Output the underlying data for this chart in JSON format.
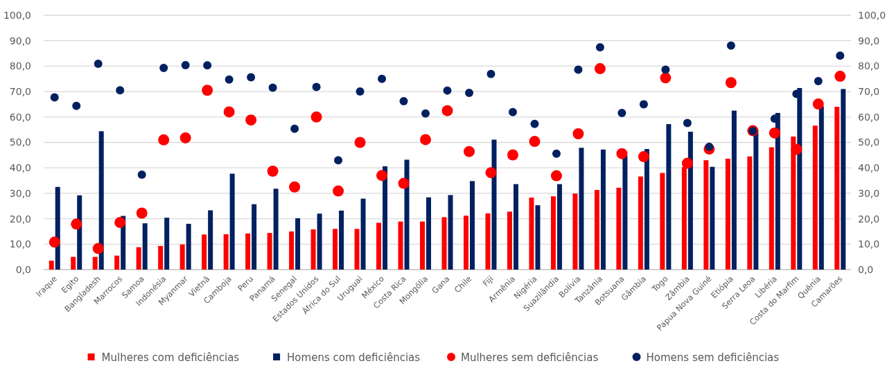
{
  "chart_data": {
    "type": "bar",
    "categories": [
      "Iraque",
      "Egito",
      "Bangladesh",
      "Marrocos",
      "Samoa",
      "Indonésia",
      "Myanmar",
      "Vietnã",
      "Camboja",
      "Peru",
      "Panamá",
      "Senegal",
      "Estados Unidos",
      "África do Sul",
      "Uruguai",
      "México",
      "Costa Rica",
      "Mongólia",
      "Gana",
      "Chile",
      "Fiji",
      "Armênia",
      "Nigéria",
      "Suazilândia",
      "Bolívia",
      "Tanzânia",
      "Botsuana",
      "Gâmbia",
      "Togo",
      "Zâmbia",
      "Papua Nova Guiné",
      "Etiópia",
      "Serra Leoa",
      "Libéria",
      "Costa do Marfim",
      "Quênia",
      "Camarões"
    ],
    "series": [
      {
        "name": "Mulheres com deficiências",
        "color": "#ff0000",
        "values": [
          3.5,
          5.0,
          5.0,
          5.5,
          8.8,
          9.3,
          9.9,
          13.8,
          13.9,
          14.2,
          14.4,
          15.0,
          15.8,
          16.0,
          16.0,
          18.4,
          18.9,
          18.9,
          20.6,
          21.2,
          22.1,
          22.8,
          28.3,
          28.8,
          29.9,
          31.3,
          32.2,
          36.6,
          38.0,
          40.3,
          43.0,
          43.6,
          44.5,
          48.1,
          52.3,
          56.6,
          64.0
        ]
      },
      {
        "name": "Homens com deficiências",
        "color": "#002060",
        "values": [
          32.5,
          29.2,
          54.4,
          21.1,
          18.2,
          20.4,
          18.0,
          23.3,
          37.7,
          25.7,
          31.8,
          20.2,
          22.0,
          23.2,
          27.9,
          40.6,
          43.2,
          28.4,
          29.3,
          34.8,
          51.1,
          33.6,
          25.3,
          33.6,
          47.9,
          47.2,
          44.9,
          47.4,
          57.2,
          54.2,
          40.4,
          62.5,
          54.8,
          61.6,
          71.4,
          64.2,
          71.0
        ]
      },
      {
        "name": "Mulheres sem deficiências",
        "type": "scatter",
        "color": "#ff0000",
        "values": [
          10.8,
          17.9,
          8.3,
          18.5,
          22.2,
          51.0,
          51.8,
          70.5,
          62.0,
          58.8,
          38.7,
          32.5,
          60.0,
          30.9,
          50.0,
          37.0,
          33.9,
          51.1,
          62.5,
          46.4,
          38.1,
          45.1,
          50.4,
          36.9,
          53.4,
          79.0,
          45.6,
          44.4,
          75.4,
          41.8,
          47.4,
          73.5,
          54.6,
          53.7,
          47.3,
          65.1,
          76.0
        ]
      },
      {
        "name": "Homens sem deficiências",
        "type": "scatter",
        "color": "#002060",
        "values": [
          67.7,
          64.4,
          80.9,
          70.5,
          37.3,
          79.3,
          80.4,
          80.3,
          74.7,
          75.6,
          71.5,
          55.4,
          71.8,
          43.0,
          70.0,
          75.0,
          66.2,
          61.4,
          70.4,
          69.5,
          76.9,
          61.9,
          57.3,
          45.6,
          78.6,
          87.4,
          61.6,
          65.0,
          78.6,
          57.6,
          48.3,
          88.1,
          54.5,
          59.3,
          69.1,
          74.1,
          84.1
        ]
      }
    ],
    "ylim": [
      0,
      100
    ],
    "yticks": [
      {
        "value": 0,
        "label": "0,0"
      },
      {
        "value": 10,
        "label": "10,0"
      },
      {
        "value": 20,
        "label": "20,0"
      },
      {
        "value": 30,
        "label": "30,0"
      },
      {
        "value": 40,
        "label": "40,0"
      },
      {
        "value": 50,
        "label": "50,0"
      },
      {
        "value": 60,
        "label": "60,0"
      },
      {
        "value": 70,
        "label": "70,0"
      },
      {
        "value": 80,
        "label": "80,0"
      },
      {
        "value": 90,
        "label": "90,0"
      },
      {
        "value": 100,
        "label": "100,0"
      }
    ],
    "y2lim": [
      0,
      100
    ],
    "y2ticks": [
      {
        "value": 0,
        "label": "0,0"
      },
      {
        "value": 10,
        "label": "10,0"
      },
      {
        "value": 20,
        "label": "20,0"
      },
      {
        "value": 30,
        "label": "30,0"
      },
      {
        "value": 40,
        "label": "40,0"
      },
      {
        "value": 50,
        "label": "50,0"
      },
      {
        "value": 60,
        "label": "60,0"
      },
      {
        "value": 70,
        "label": "70,0"
      },
      {
        "value": 80,
        "label": "80,0"
      },
      {
        "value": 90,
        "label": "90,0"
      },
      {
        "value": 100,
        "label": "100,0"
      }
    ],
    "grid": "y",
    "legend": "bottom",
    "marker": "circle"
  }
}
